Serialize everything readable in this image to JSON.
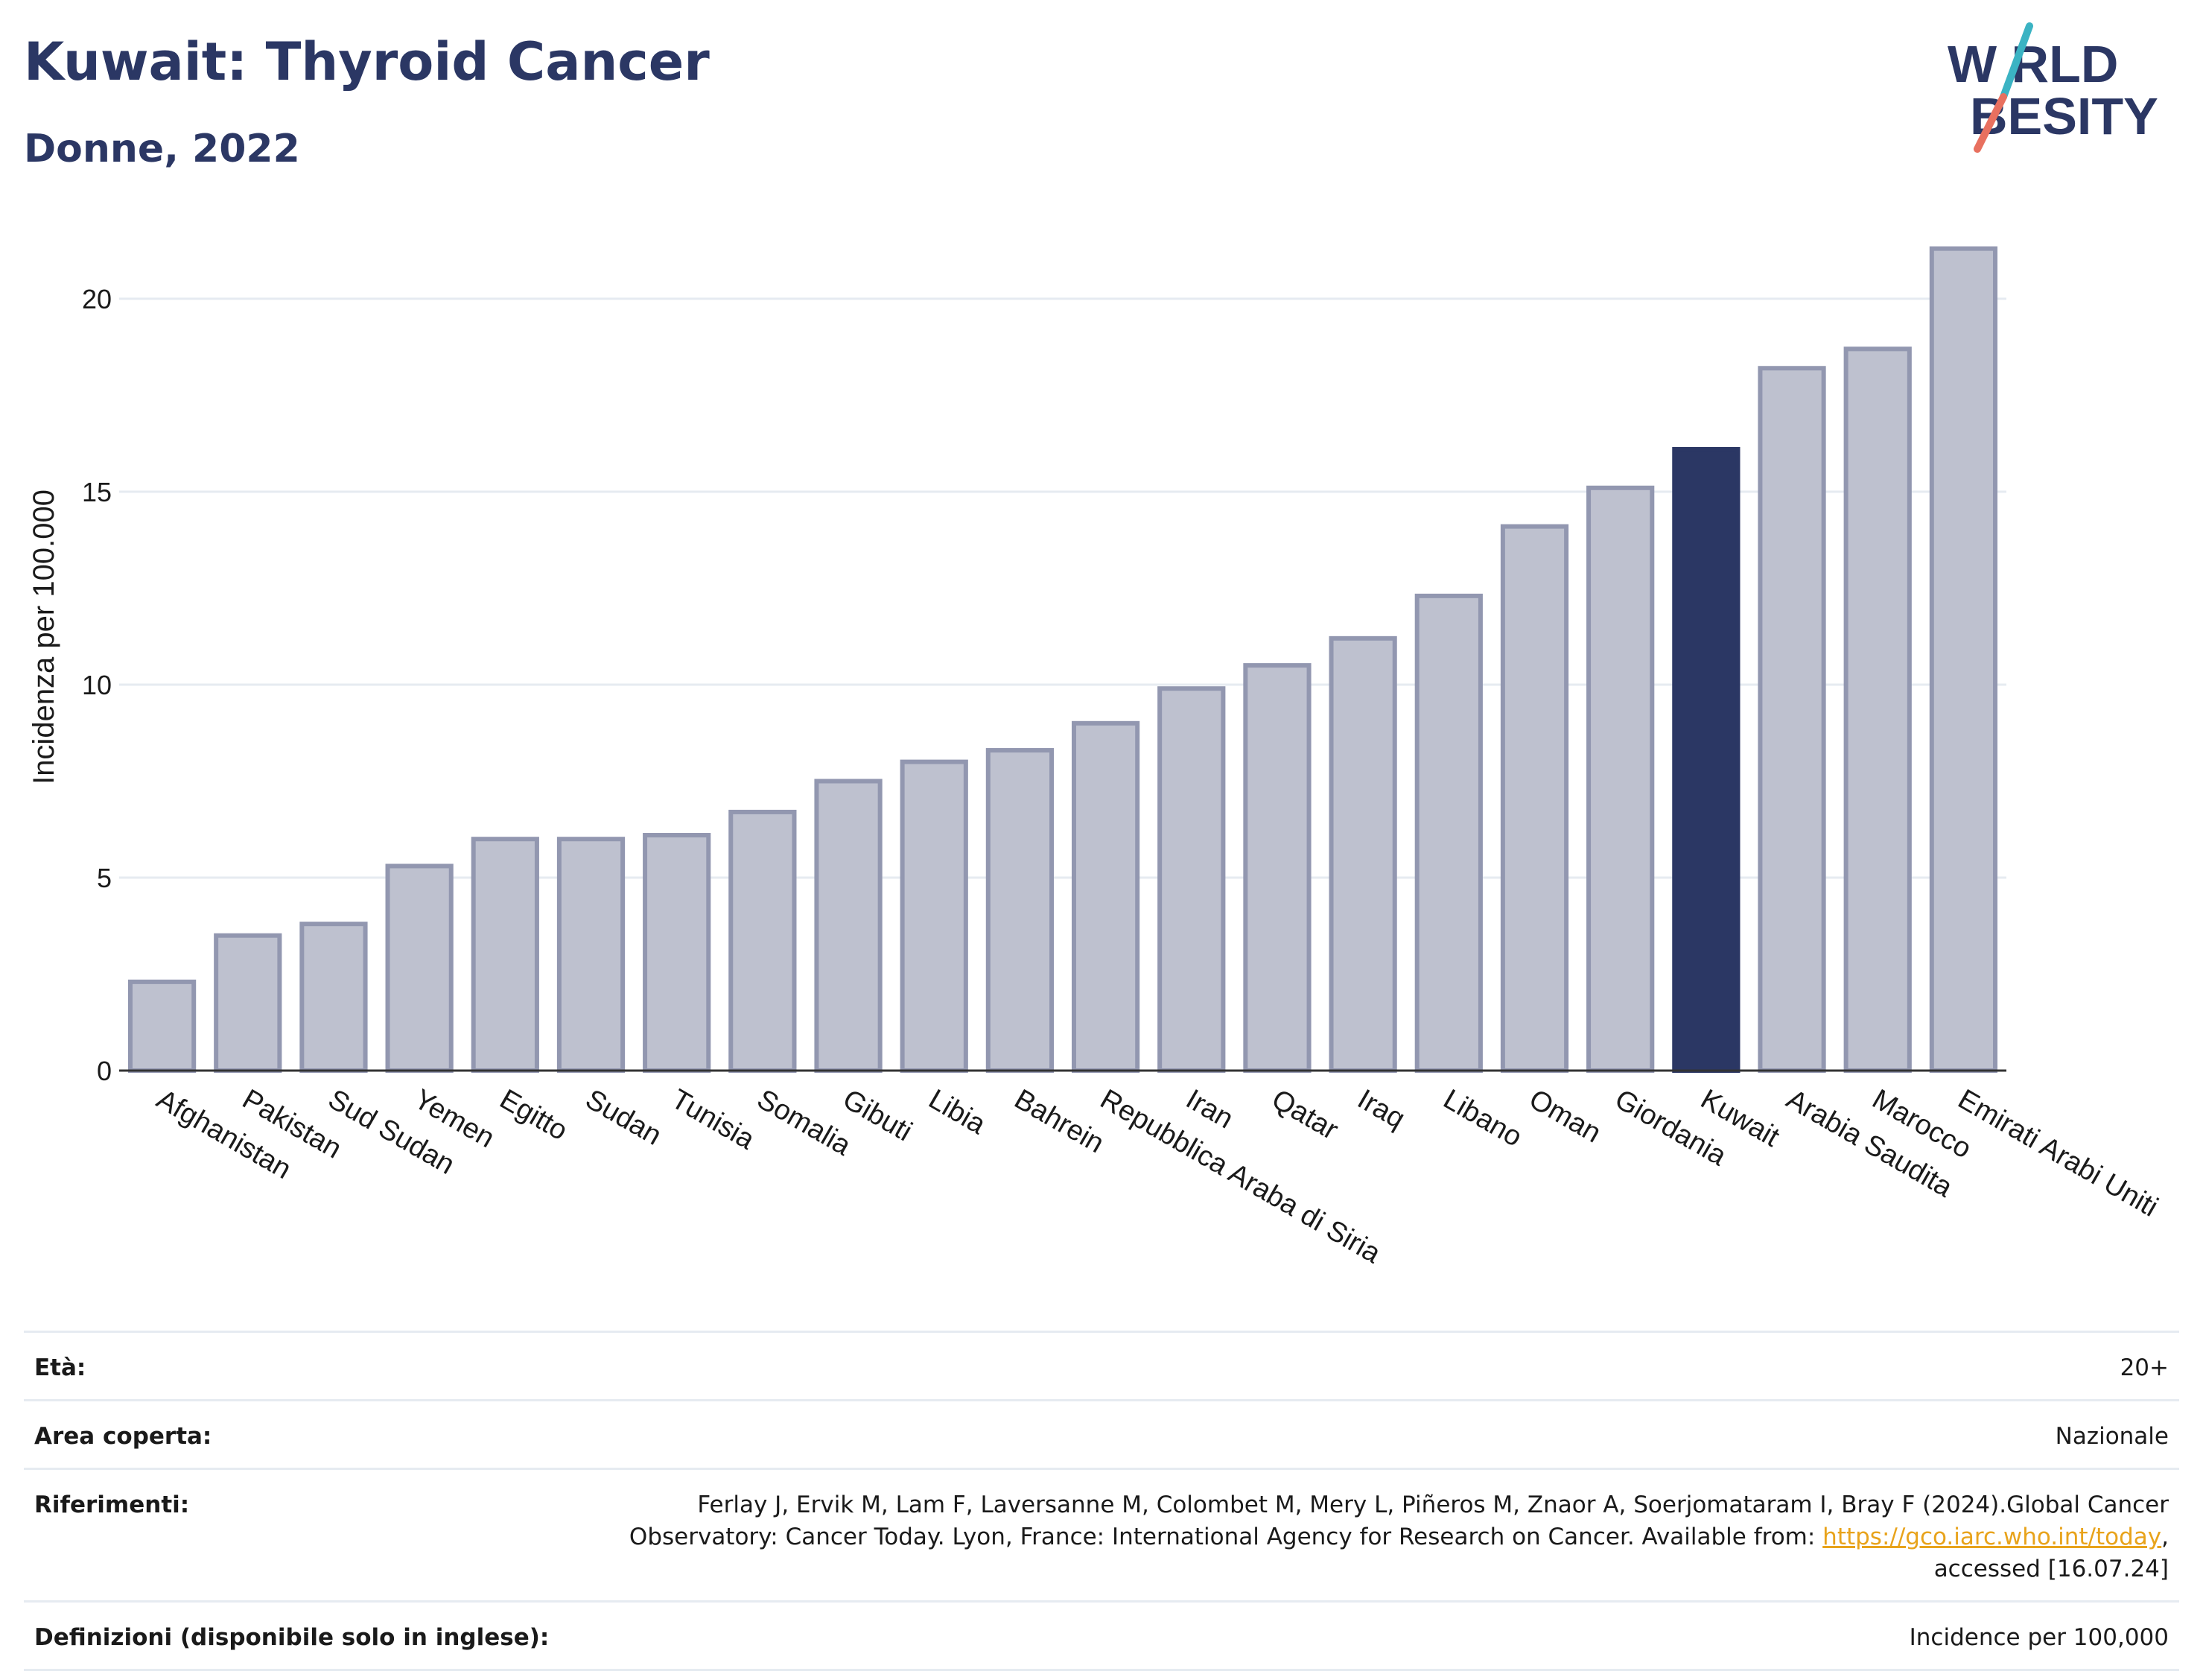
{
  "header": {
    "title": "Kuwait: Thyroid Cancer",
    "subtitle": "Donne, 2022"
  },
  "logo": {
    "line1": "W RLD",
    "line2": "BESITY",
    "colors": {
      "text": "#2b3764",
      "slash_teal": "#3bb3c3",
      "slash_coral": "#e8705f"
    }
  },
  "chart_data": {
    "type": "bar",
    "title": "",
    "xlabel": "",
    "ylabel": "Incidenza per 100.000",
    "ylim": [
      0,
      22
    ],
    "yticks": [
      0,
      5,
      10,
      15,
      20
    ],
    "grid": true,
    "highlight": "Kuwait",
    "colors": {
      "bar": "#bec1cf",
      "bar_border": "#9297b0",
      "highlight": "#2b3764",
      "grid": "#e6ebf1"
    },
    "categories": [
      "Afghanistan",
      "Pakistan",
      "Sud Sudan",
      "Yemen",
      "Egitto",
      "Sudan",
      "Tunisia",
      "Somalia",
      "Gibuti",
      "Libia",
      "Bahrein",
      "Repubblica Araba di Siria",
      "Iran",
      "Qatar",
      "Iraq",
      "Libano",
      "Oman",
      "Giordania",
      "Kuwait",
      "Arabia Saudita",
      "Marocco",
      "Emirati Arabi Uniti"
    ],
    "values": [
      2.3,
      3.5,
      3.8,
      5.3,
      6.0,
      6.0,
      6.1,
      6.7,
      7.5,
      8.0,
      8.3,
      9.0,
      9.9,
      10.5,
      11.2,
      12.3,
      14.1,
      15.1,
      16.1,
      18.2,
      18.7,
      21.3
    ]
  },
  "meta": {
    "age_label": "Età:",
    "age_value": "20+",
    "area_label": "Area coperta:",
    "area_value": "Nazionale",
    "ref_label": "Riferimenti:",
    "ref_text1": "Ferlay J, Ervik M, Lam F, Laversanne M, Colombet M, Mery L, Piñeros M, Znaor A, Soerjomataram I, Bray F (2024).Global Cancer Observatory: Cancer Today. Lyon, France: International Agency for Research on Cancer. Available from: ",
    "ref_link": "https://gco.iarc.who.int/today",
    "ref_text2": ", accessed [16.07.24]",
    "def_label": "Definizioni (disponibile solo in inglese):",
    "def_value": "Incidence per 100,000"
  }
}
